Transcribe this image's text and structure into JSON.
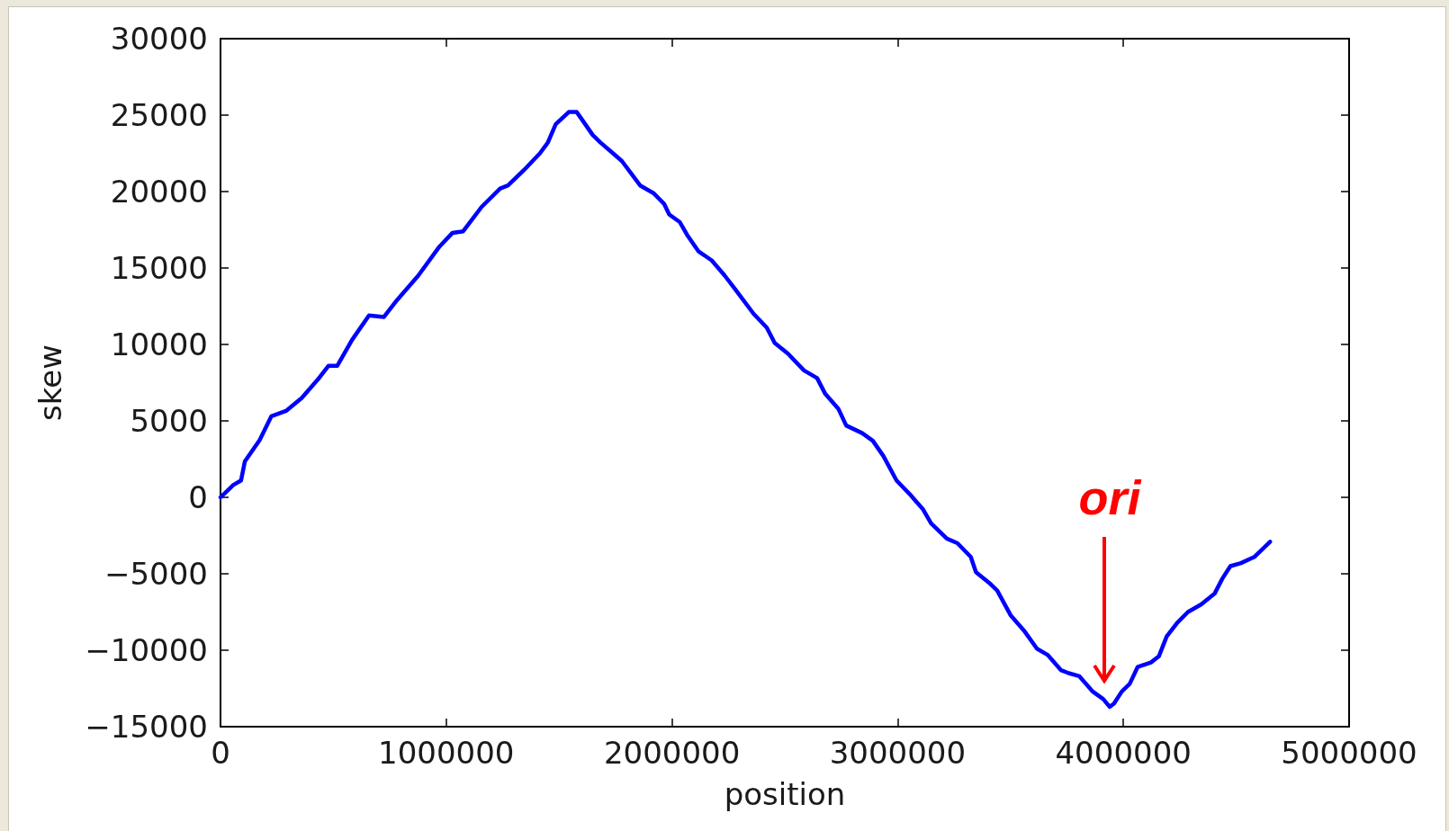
{
  "chart_data": {
    "type": "line",
    "xlabel": "position",
    "ylabel": "skew",
    "x": [
      0,
      56000,
      91000,
      108000,
      173000,
      225000,
      290000,
      360000,
      431000,
      478000,
      517000,
      583000,
      658000,
      724000,
      782000,
      876000,
      970000,
      1028000,
      1075000,
      1157000,
      1239000,
      1274000,
      1344000,
      1415000,
      1450000,
      1485000,
      1543000,
      1578000,
      1602000,
      1649000,
      1684000,
      1731000,
      1778000,
      1859000,
      1918000,
      1965000,
      1988000,
      2035000,
      2070000,
      2117000,
      2176000,
      2234000,
      2281000,
      2362000,
      2420000,
      2455000,
      2514000,
      2585000,
      2643000,
      2678000,
      2737000,
      2772000,
      2843000,
      2890000,
      2937000,
      2995000,
      3054000,
      3113000,
      3148000,
      3218000,
      3265000,
      3324000,
      3347000,
      3406000,
      3441000,
      3500000,
      3559000,
      3617000,
      3664000,
      3723000,
      3758000,
      3805000,
      3864000,
      3911000,
      3939000,
      3958000,
      3993000,
      4028000,
      4063000,
      4122000,
      4157000,
      4192000,
      4239000,
      4286000,
      4345000,
      4404000,
      4439000,
      4474000,
      4521000,
      4580000,
      4615000,
      4650000
    ],
    "series": [
      {
        "color": "#0000ff",
        "values": [
          0,
          800,
          1100,
          2350,
          3740,
          5300,
          5650,
          6500,
          7700,
          8600,
          8600,
          10300,
          11900,
          11800,
          12900,
          14500,
          16400,
          17300,
          17400,
          19000,
          20200,
          20400,
          21400,
          22500,
          23200,
          24400,
          25200,
          25200,
          24700,
          23700,
          23200,
          22600,
          22000,
          20400,
          19900,
          19200,
          18500,
          18000,
          17100,
          16100,
          15500,
          14500,
          13600,
          12000,
          11100,
          10100,
          9400,
          8300,
          7800,
          6800,
          5800,
          4700,
          4200,
          3700,
          2700,
          1100,
          200,
          -800,
          -1700,
          -2700,
          -3000,
          -3900,
          -4900,
          -5600,
          -6100,
          -7700,
          -8700,
          -9900,
          -10300,
          -11300,
          -11500,
          -11700,
          -12700,
          -13200,
          -13700,
          -13500,
          -12700,
          -12200,
          -11100,
          -10800,
          -10400,
          -9100,
          -8200,
          -7500,
          -7000,
          -6300,
          -5300,
          -4500,
          -4300,
          -3900,
          -3400,
          -2900
        ]
      }
    ],
    "xlim": [
      0,
      5000000
    ],
    "xticks": [
      0,
      1000000,
      2000000,
      3000000,
      4000000,
      5000000
    ],
    "ylim": [
      -15000,
      30000
    ],
    "yticks": [
      {
        "value": -15000,
        "label": "−15000"
      },
      {
        "value": -10000,
        "label": "−10000"
      },
      {
        "value": -5000,
        "label": "−5000"
      },
      0,
      5000,
      10000,
      15000,
      20000,
      25000,
      30000
    ],
    "marker": "none",
    "line_style": "solid",
    "annotations": [
      "ori"
    ]
  }
}
